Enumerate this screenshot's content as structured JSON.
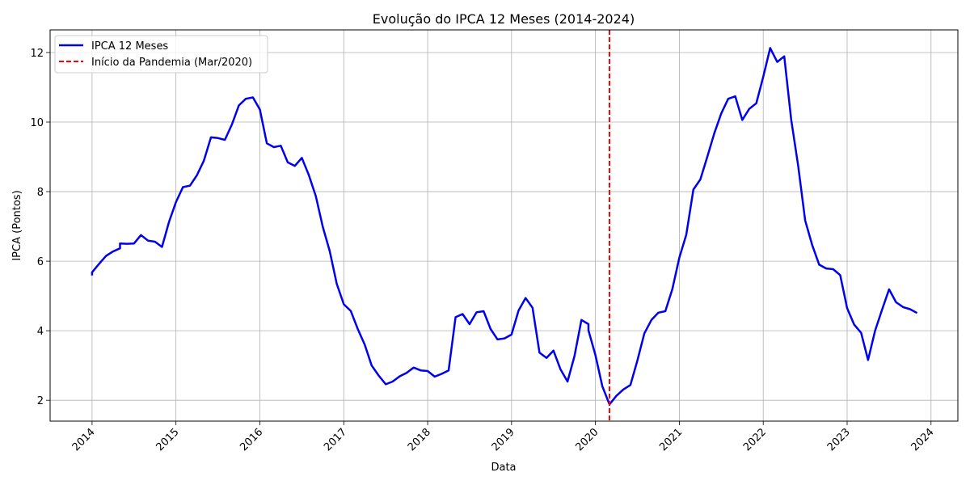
{
  "chart_data": {
    "type": "line",
    "title": "Evolução do IPCA 12 Meses (2014-2024)",
    "xlabel": "Data",
    "ylabel": "IPCA (Pontos)",
    "xlim": [
      2013.5,
      2024.32
    ],
    "ylim": [
      1.4,
      12.65
    ],
    "x_ticks": [
      2014,
      2015,
      2016,
      2017,
      2018,
      2019,
      2020,
      2021,
      2022,
      2023,
      2024
    ],
    "x_tick_labels": [
      "2014",
      "2015",
      "2016",
      "2017",
      "2018",
      "2019",
      "2020",
      "2021",
      "2022",
      "2023",
      "2024"
    ],
    "y_ticks": [
      2,
      4,
      6,
      8,
      10,
      12
    ],
    "y_tick_labels": [
      "2",
      "4",
      "6",
      "8",
      "10",
      "12"
    ],
    "grid": true,
    "legend_position": "top-left",
    "series": [
      {
        "name": "IPCA 12 Meses",
        "color": "#0000ee",
        "style": "solid",
        "x": [
          2014.0,
          2014.0,
          2014.083,
          2014.167,
          2014.25,
          2014.333,
          2014.333,
          2014.417,
          2014.5,
          2014.583,
          2014.667,
          2014.75,
          2014.833,
          2014.917,
          2015.0,
          2015.083,
          2015.167,
          2015.25,
          2015.333,
          2015.417,
          2015.5,
          2015.583,
          2015.667,
          2015.75,
          2015.833,
          2015.917,
          2016.0,
          2016.083,
          2016.167,
          2016.25,
          2016.333,
          2016.417,
          2016.5,
          2016.583,
          2016.667,
          2016.75,
          2016.833,
          2016.917,
          2017.0,
          2017.083,
          2017.167,
          2017.25,
          2017.333,
          2017.417,
          2017.5,
          2017.583,
          2017.667,
          2017.75,
          2017.833,
          2017.917,
          2018.0,
          2018.083,
          2018.167,
          2018.25,
          2018.333,
          2018.417,
          2018.5,
          2018.583,
          2018.667,
          2018.75,
          2018.833,
          2018.917,
          2019.0,
          2019.083,
          2019.167,
          2019.25,
          2019.333,
          2019.417,
          2019.5,
          2019.583,
          2019.667,
          2019.75,
          2019.833,
          2019.917,
          2019.917,
          2020.0,
          2020.083,
          2020.167,
          2020.25,
          2020.333,
          2020.417,
          2020.5,
          2020.583,
          2020.667,
          2020.75,
          2020.833,
          2020.917,
          2021.0,
          2021.083,
          2021.167,
          2021.25,
          2021.333,
          2021.417,
          2021.5,
          2021.583,
          2021.667,
          2021.75,
          2021.833,
          2021.917,
          2022.0,
          2022.083,
          2022.167,
          2022.25,
          2022.333,
          2022.417,
          2022.5,
          2022.583,
          2022.667,
          2022.75,
          2022.833,
          2022.917,
          2023.0,
          2023.083,
          2023.167,
          2023.25,
          2023.333,
          2023.417,
          2023.5,
          2023.583,
          2023.667,
          2023.75,
          2023.833
        ],
        "y": [
          5.59,
          5.68,
          5.92,
          6.15,
          6.28,
          6.37,
          6.51,
          6.5,
          6.51,
          6.75,
          6.59,
          6.56,
          6.41,
          7.13,
          7.7,
          8.13,
          8.17,
          8.47,
          8.89,
          9.56,
          9.54,
          9.49,
          9.93,
          10.48,
          10.67,
          10.71,
          10.36,
          9.39,
          9.28,
          9.32,
          8.84,
          8.74,
          8.97,
          8.48,
          7.87,
          6.99,
          6.29,
          5.35,
          4.76,
          4.57,
          4.05,
          3.6,
          3.0,
          2.71,
          2.46,
          2.54,
          2.69,
          2.79,
          2.94,
          2.86,
          2.84,
          2.68,
          2.76,
          2.86,
          4.39,
          4.48,
          4.19,
          4.53,
          4.56,
          4.05,
          3.75,
          3.78,
          3.89,
          4.58,
          4.94,
          4.66,
          3.37,
          3.22,
          3.43,
          2.89,
          2.54,
          3.27,
          4.31,
          4.19,
          4.01,
          3.3,
          2.4,
          1.88,
          2.13,
          2.31,
          2.44,
          3.14,
          3.92,
          4.31,
          4.52,
          4.56,
          5.2,
          6.1,
          6.76,
          8.06,
          8.35,
          9.0,
          9.68,
          10.25,
          10.67,
          10.74,
          10.06,
          10.38,
          10.54,
          11.3,
          12.13,
          11.73,
          11.89,
          10.07,
          8.73,
          7.17,
          6.47,
          5.9,
          5.79,
          5.77,
          5.6,
          4.65,
          4.18,
          3.94,
          3.16,
          4.0,
          4.61,
          5.19,
          4.82,
          4.68,
          4.62,
          4.51
        ]
      },
      {
        "name": "Início da Pandemia (Mar/2020)",
        "color": "#ff0000",
        "style": "dashed",
        "type": "vline",
        "x": 2020.167
      }
    ]
  }
}
